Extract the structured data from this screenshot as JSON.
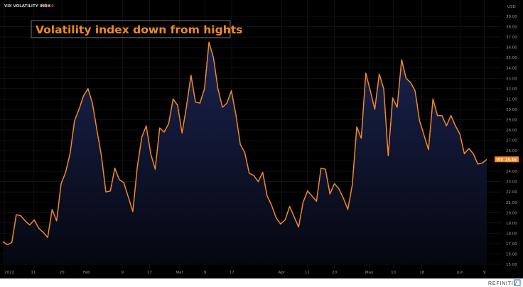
{
  "header": {
    "series_name": "VIX VOLATILITY INDX",
    "last_value_text": "25.16"
  },
  "currency": "USD",
  "brand": "REFINITIV",
  "chart_data": {
    "type": "line",
    "title": "Volatility index down from hights",
    "series": [
      {
        "name": "VIX VOLATILITY INDX",
        "values": [
          17.2,
          16.9,
          17.1,
          19.8,
          19.7,
          19.2,
          18.8,
          19.3,
          18.5,
          18.1,
          17.6,
          20.3,
          19.2,
          22.8,
          23.9,
          25.7,
          28.9,
          30.0,
          31.3,
          32.0,
          30.6,
          28.0,
          25.5,
          22.0,
          22.1,
          24.3,
          23.2,
          22.9,
          21.5,
          20.1,
          24.4,
          27.3,
          28.4,
          25.7,
          24.2,
          28.2,
          27.8,
          28.6,
          31.0,
          30.4,
          27.7,
          30.3,
          33.3,
          30.7,
          30.6,
          32.0,
          36.5,
          35.0,
          32.0,
          30.2,
          30.6,
          31.8,
          29.5,
          26.6,
          25.8,
          23.8,
          23.6,
          23.0,
          23.9,
          21.6,
          20.7,
          19.5,
          18.9,
          19.3,
          20.6,
          19.6,
          18.6,
          21.0,
          22.1,
          21.6,
          21.1,
          24.3,
          24.2,
          21.8,
          22.8,
          22.3,
          21.4,
          20.3,
          22.7,
          28.3,
          27.2,
          33.5,
          31.8,
          30.0,
          33.4,
          32.0,
          25.5,
          31.1,
          30.2,
          34.8,
          33.0,
          32.6,
          31.8,
          28.9,
          27.5,
          26.1,
          31.0,
          29.4,
          29.4,
          28.4,
          29.4,
          28.4,
          27.6,
          25.7,
          26.2,
          25.7,
          24.7,
          24.8,
          25.16
        ]
      }
    ],
    "x_ticks": [
      "2022",
      "11",
      "20",
      "Feb",
      "9",
      "17",
      "Mar",
      "9",
      "17",
      "Apr",
      "11",
      "20",
      "May",
      "10",
      "18",
      "Jun",
      "9"
    ],
    "y_ticks": [
      "15.00",
      "16.00",
      "17.00",
      "18.00",
      "19.00",
      "20.00",
      "21.00",
      "22.00",
      "23.00",
      "24.00",
      "25.00",
      "26.00",
      "27.00",
      "28.00",
      "29.00",
      "30.00",
      "31.00",
      "32.00",
      "33.00",
      "34.00",
      "35.00",
      "36.00",
      "37.00",
      "38.00",
      "39.00"
    ],
    "ylim": [
      15,
      39
    ],
    "xlabel": "",
    "ylabel": "",
    "grid": true,
    "last_value_tag": "VIX",
    "last_value_label": "25.16",
    "colors": {
      "line": "#f08a24",
      "background": "#000000",
      "fill_top": "#1a2350",
      "grid": "#1c1c1c",
      "title_border": "#8a8a8a"
    }
  }
}
